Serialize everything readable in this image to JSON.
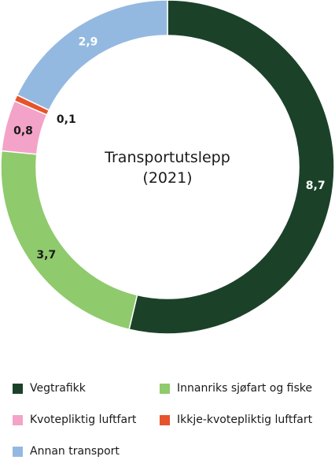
{
  "chart_data": {
    "type": "pie",
    "variant": "donut",
    "center_label": [
      "Transportutslepp",
      "(2021)"
    ],
    "categories": [
      "Vegtrafikk",
      "Innanriks sjøfart og fiske",
      "Kvotepliktig luftfart",
      "Ikkje-kvotepliktig luftfart",
      "Annan transport"
    ],
    "values": [
      8.7,
      3.7,
      0.8,
      0.1,
      2.9
    ],
    "value_labels": [
      "8,7",
      "3,7",
      "0,8",
      "0,1",
      "2,9"
    ],
    "colors": [
      "#1b4229",
      "#8fca6c",
      "#f3a3c8",
      "#e5542b",
      "#94b9e0"
    ],
    "label_colors": [
      "#ffffff",
      "#1a1a1a",
      "#1a1a1a",
      "#1a1a1a",
      "#ffffff"
    ],
    "legend_position": "bottom"
  }
}
